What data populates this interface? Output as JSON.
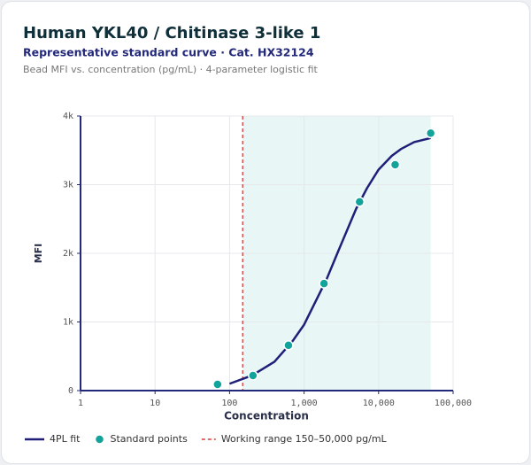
{
  "chart_data": {
    "type": "line",
    "title": "Human YKL40 / Chitinase 3-like 1",
    "subtitle": "Representative standard curve · Cat. HX32124",
    "description": "Bead MFI vs. concentration (pg/mL) · 4-parameter logistic fit",
    "x_label": "Concentration",
    "y_label": "MFI",
    "x_scale": "log",
    "grid": true,
    "xlim": [
      1,
      100000
    ],
    "xticks": [
      1,
      10,
      100,
      {
        "value": 1000,
        "label": "1,000"
      },
      {
        "value": 10000,
        "label": "10,000"
      },
      {
        "value": 100000,
        "label": "100,000"
      }
    ],
    "ylim": [
      0,
      4000
    ],
    "yticks": [
      0,
      {
        "value": 1000,
        "label": "1k"
      },
      {
        "value": 2000,
        "label": "2k"
      },
      {
        "value": 3000,
        "label": "3k"
      },
      {
        "value": 4000,
        "label": "4k"
      }
    ],
    "series": [
      {
        "name": "4PL fit",
        "type": "line",
        "color": "#1f1f78",
        "x": [
          100,
          200,
          400,
          700,
          1000,
          2000,
          3000,
          5000,
          7000,
          10000,
          15000,
          20000,
          30000,
          50000
        ],
        "values": [
          100,
          220,
          420,
          720,
          960,
          1620,
          2080,
          2650,
          2950,
          3220,
          3420,
          3520,
          3620,
          3680
        ]
      },
      {
        "name": "Standard points",
        "type": "scatter",
        "color": "#12a39a",
        "x": [
          69,
          206,
          617,
          1852,
          5556,
          16667,
          50000
        ],
        "values": [
          90,
          220,
          660,
          1560,
          2750,
          3290,
          3750
        ]
      }
    ],
    "working_range": {
      "name": "Working range 150–50,000 pg/mL",
      "color": "#d23a3a",
      "fill": "#e9f6f6",
      "x": [
        150,
        50000
      ]
    }
  }
}
